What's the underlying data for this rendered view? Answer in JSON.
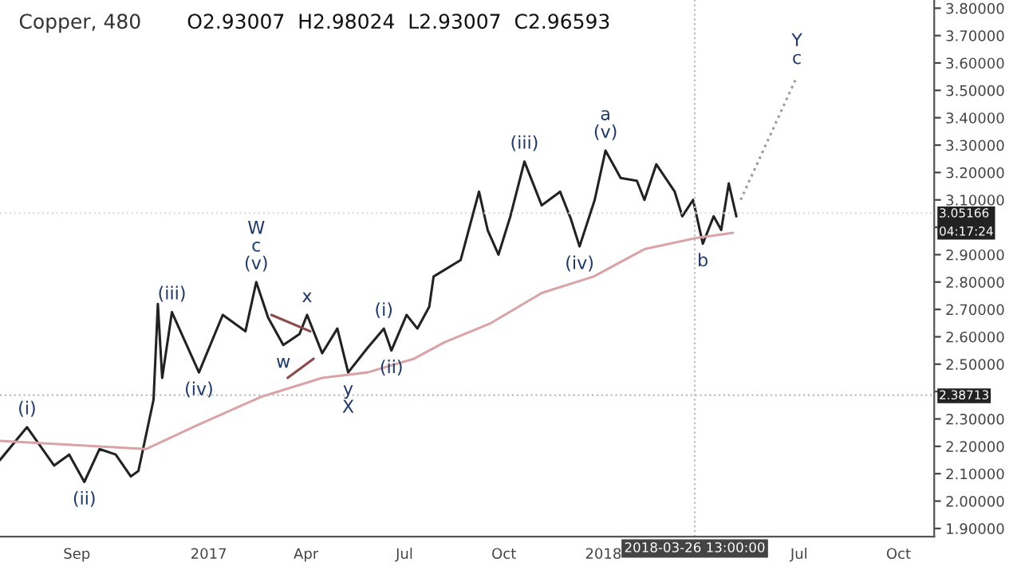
{
  "chart_data": {
    "type": "line",
    "title": "Copper, 480",
    "subtitle": "O2.93007  H2.98024  L2.93007  C2.96593",
    "series": [
      {
        "color": "#222222",
        "x": [
          "2016-06-22",
          "2016-07-17",
          "2016-08-11",
          "2016-08-25",
          "2016-09-08",
          "2016-09-22",
          "2016-10-07",
          "2016-10-21",
          "2016-10-28",
          "2016-11-11",
          "2016-11-15",
          "2016-11-19",
          "2016-11-28",
          "2016-12-23",
          "2017-01-14",
          "2017-02-04",
          "2017-02-14",
          "2017-02-25",
          "2017-03-11",
          "2017-03-26",
          "2017-04-02",
          "2017-04-16",
          "2017-04-30",
          "2017-05-10",
          "2017-05-28",
          "2017-06-12",
          "2017-06-19",
          "2017-07-03",
          "2017-07-13",
          "2017-07-24",
          "2017-07-28",
          "2017-08-22",
          "2017-09-08",
          "2017-09-16",
          "2017-09-26",
          "2017-10-07",
          "2017-10-20",
          "2017-11-05",
          "2017-11-22",
          "2017-12-02",
          "2017-12-10",
          "2017-12-24",
          "2018-01-03",
          "2018-01-17",
          "2018-02-01",
          "2018-02-08",
          "2018-02-19",
          "2018-03-08",
          "2018-03-15",
          "2018-03-25",
          "2018-04-03",
          "2018-04-13",
          "2018-04-20",
          "2018-04-27",
          "2018-05-04"
        ],
        "values": [
          2.15,
          2.27,
          2.13,
          2.17,
          2.07,
          2.19,
          2.17,
          2.09,
          2.11,
          2.37,
          2.72,
          2.45,
          2.69,
          2.47,
          2.68,
          2.62,
          2.8,
          2.67,
          2.57,
          2.61,
          2.68,
          2.54,
          2.63,
          2.47,
          2.56,
          2.63,
          2.55,
          2.68,
          2.63,
          2.71,
          2.82,
          2.88,
          3.13,
          2.99,
          2.9,
          3.04,
          3.24,
          3.08,
          3.13,
          3.03,
          2.93,
          3.1,
          3.28,
          3.18,
          3.17,
          3.1,
          3.23,
          3.13,
          3.04,
          3.1,
          2.94,
          3.04,
          2.99,
          3.16,
          3.04
        ]
      },
      {
        "color": "#d9a3a8",
        "x": [
          "2016-06-22",
          "2016-11-04",
          "2016-12-23",
          "2017-02-18",
          "2017-04-16",
          "2017-05-28",
          "2017-07-10",
          "2017-08-07",
          "2017-09-19",
          "2017-11-05",
          "2017-12-23",
          "2018-02-08",
          "2018-03-27",
          "2018-05-01"
        ],
        "values": [
          2.22,
          2.19,
          2.28,
          2.38,
          2.45,
          2.47,
          2.52,
          2.58,
          2.65,
          2.76,
          2.82,
          2.92,
          2.96,
          2.98
        ]
      },
      {
        "color": "#8b4a4a",
        "x": [
          "2017-02-28",
          "2017-04-05"
        ],
        "values": [
          2.68,
          2.62
        ]
      },
      {
        "color": "#8b4a4a",
        "x": [
          "2017-03-15",
          "2017-04-08"
        ],
        "values": [
          2.45,
          2.52
        ]
      },
      {
        "color": "#999999",
        "line_style": "dotted",
        "x": [
          "2018-05-08",
          "2018-06-29"
        ],
        "values": [
          3.1,
          3.55
        ]
      }
    ],
    "annotations": [
      {
        "text": "(i)",
        "x": "2016-07-17",
        "y": 2.27
      },
      {
        "text": "(ii)",
        "x": "2016-09-08",
        "y": 2.07
      },
      {
        "text": "(iii)",
        "x": "2016-11-28",
        "y": 2.69
      },
      {
        "text": "(iv)",
        "x": "2016-12-23",
        "y": 2.47
      },
      {
        "text": "W",
        "x": "2017-02-14",
        "y": 2.8
      },
      {
        "text": "c",
        "x": "2017-02-14",
        "y": 2.8
      },
      {
        "text": "(v)",
        "x": "2017-02-14",
        "y": 2.8
      },
      {
        "text": "w",
        "x": "2017-03-11",
        "y": 2.57
      },
      {
        "text": "x",
        "x": "2017-04-02",
        "y": 2.68
      },
      {
        "text": "y",
        "x": "2017-05-10",
        "y": 2.47
      },
      {
        "text": "X",
        "x": "2017-05-10",
        "y": 2.47
      },
      {
        "text": "(i)",
        "x": "2017-06-12",
        "y": 2.63
      },
      {
        "text": "(ii)",
        "x": "2017-06-19",
        "y": 2.55
      },
      {
        "text": "(iii)",
        "x": "2017-10-20",
        "y": 3.24
      },
      {
        "text": "(iv)",
        "x": "2017-12-10",
        "y": 2.93
      },
      {
        "text": "a",
        "x": "2018-01-03",
        "y": 3.28
      },
      {
        "text": "(v)",
        "x": "2018-01-03",
        "y": 3.28
      },
      {
        "text": "b",
        "x": "2018-04-03",
        "y": 2.94
      },
      {
        "text": "Y",
        "x": "2018-06-29",
        "y": 3.55
      },
      {
        "text": "c",
        "x": "2018-06-29",
        "y": 3.55
      }
    ],
    "ref_lines": [
      {
        "axis": "x",
        "value": "2018-03-26T13:00",
        "label": "2018-03-26 13:00:00",
        "color": "#bbbbbb",
        "line_style": "dotted"
      },
      {
        "axis": "y",
        "value": 2.38713,
        "label": "2.38713",
        "color": "#bbbbbb",
        "line_style": "dotted"
      },
      {
        "axis": "y",
        "value": 3.05166,
        "label": "3.05166\n04:17:24",
        "color": "#dddddd",
        "line_style": "dotted"
      }
    ],
    "xlim": [
      "2016-06-22",
      "2018-11-03"
    ],
    "xticks": [
      {
        "value": "2016-09-01",
        "label": "Sep"
      },
      {
        "value": "2017-01-01",
        "label": "2017"
      },
      {
        "value": "2017-04-01",
        "label": "Apr"
      },
      {
        "value": "2017-07-01",
        "label": "Jul"
      },
      {
        "value": "2017-10-01",
        "label": "Oct"
      },
      {
        "value": "2018-01-01",
        "label": "2018"
      },
      {
        "value": "2018-07-01",
        "label": "Jul"
      },
      {
        "value": "2018-10-01",
        "label": "Oct"
      }
    ],
    "ylim": [
      1.87,
      3.83
    ],
    "yticks": [
      {
        "value": 1.9,
        "label": "1.90000"
      },
      {
        "value": 2.0,
        "label": "2.00000"
      },
      {
        "value": 2.1,
        "label": "2.10000"
      },
      {
        "value": 2.2,
        "label": "2.20000"
      },
      {
        "value": 2.3,
        "label": "2.30000"
      },
      {
        "value": 2.4,
        "label": null
      },
      {
        "value": 2.5,
        "label": "2.50000"
      },
      {
        "value": 2.6,
        "label": "2.60000"
      },
      {
        "value": 2.7,
        "label": "2.70000"
      },
      {
        "value": 2.8,
        "label": "2.80000"
      },
      {
        "value": 2.9,
        "label": "2.90000"
      },
      {
        "value": 3.0,
        "label": null
      },
      {
        "value": 3.1,
        "label": "3.10000"
      },
      {
        "value": 3.2,
        "label": "3.20000"
      },
      {
        "value": 3.3,
        "label": "3.30000"
      },
      {
        "value": 3.4,
        "label": "3.40000"
      },
      {
        "value": 3.5,
        "label": "3.50000"
      },
      {
        "value": 3.6,
        "label": "3.60000"
      },
      {
        "value": 3.7,
        "label": "3.70000"
      },
      {
        "value": 3.8,
        "label": "3.80000"
      }
    ],
    "grid": false,
    "legend": false
  }
}
